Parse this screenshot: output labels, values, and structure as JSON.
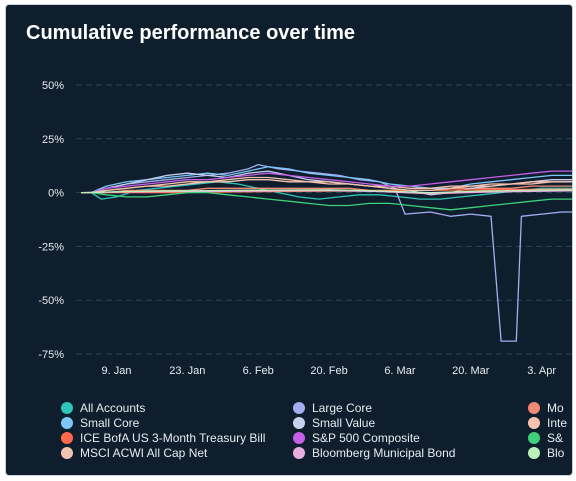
{
  "chart_data": {
    "type": "line",
    "title": "Cumulative performance over time",
    "ylim": [
      -75,
      50
    ],
    "y_ticks": [
      "50%",
      "25%",
      "0%",
      "-25%",
      "-50%",
      "-75%"
    ],
    "y_tick_values": [
      50,
      25,
      0,
      -25,
      -50,
      -75
    ],
    "x_ticks": [
      "9. Jan",
      "23. Jan",
      "6. Feb",
      "20. Feb",
      "6. Mar",
      "20. Mar",
      "3. Apr"
    ],
    "x_tick_days": [
      8,
      22,
      36,
      50,
      64,
      78,
      92
    ],
    "x_range_days": [
      0,
      98
    ],
    "grid": true,
    "legend_position": "bottom",
    "series": [
      {
        "name": "All Accounts",
        "color": "#2ec4b6",
        "values": [
          [
            1,
            0
          ],
          [
            3,
            0
          ],
          [
            5,
            -3
          ],
          [
            8,
            -2
          ],
          [
            12,
            1
          ],
          [
            16,
            2
          ],
          [
            20,
            3
          ],
          [
            24,
            4
          ],
          [
            28,
            5
          ],
          [
            32,
            4
          ],
          [
            36,
            2
          ],
          [
            40,
            0
          ],
          [
            44,
            -2
          ],
          [
            48,
            -3
          ],
          [
            52,
            -2
          ],
          [
            56,
            -1
          ],
          [
            60,
            -1
          ],
          [
            64,
            -2
          ],
          [
            68,
            -3
          ],
          [
            72,
            -3
          ],
          [
            76,
            -2
          ],
          [
            80,
            -1
          ],
          [
            84,
            0
          ],
          [
            88,
            1
          ],
          [
            92,
            2
          ],
          [
            96,
            2
          ],
          [
            98,
            2
          ]
        ]
      },
      {
        "name": "Large Core",
        "color": "#a3aef0",
        "values": [
          [
            1,
            0
          ],
          [
            3,
            0
          ],
          [
            6,
            2
          ],
          [
            10,
            4
          ],
          [
            14,
            5
          ],
          [
            18,
            6
          ],
          [
            22,
            7
          ],
          [
            26,
            8
          ],
          [
            30,
            9
          ],
          [
            34,
            11
          ],
          [
            36,
            13
          ],
          [
            40,
            11
          ],
          [
            44,
            10
          ],
          [
            48,
            9
          ],
          [
            52,
            8
          ],
          [
            56,
            6
          ],
          [
            60,
            5
          ],
          [
            63,
            2
          ],
          [
            65,
            -10
          ],
          [
            70,
            -9
          ],
          [
            74,
            -11
          ],
          [
            78,
            -10
          ],
          [
            82,
            -11
          ],
          [
            84,
            -69
          ],
          [
            87,
            -69
          ],
          [
            88,
            -11
          ],
          [
            92,
            -10
          ],
          [
            96,
            -9
          ],
          [
            98,
            -9
          ]
        ]
      },
      {
        "name": "Mo",
        "color": "#f08a72",
        "values": [
          [
            1,
            0
          ],
          [
            3,
            0
          ],
          [
            6,
            0
          ],
          [
            10,
            1
          ],
          [
            14,
            1
          ],
          [
            18,
            1
          ],
          [
            22,
            1
          ],
          [
            26,
            2
          ],
          [
            30,
            2
          ],
          [
            34,
            2
          ],
          [
            38,
            2
          ],
          [
            42,
            2
          ],
          [
            46,
            2
          ],
          [
            50,
            2
          ],
          [
            54,
            2
          ],
          [
            58,
            1
          ],
          [
            62,
            1
          ],
          [
            66,
            1
          ],
          [
            70,
            1
          ],
          [
            74,
            2
          ],
          [
            78,
            2
          ],
          [
            82,
            2
          ],
          [
            86,
            2
          ],
          [
            90,
            3
          ],
          [
            94,
            3
          ],
          [
            98,
            3
          ]
        ]
      },
      {
        "name": "Small Core",
        "color": "#7dc6f7",
        "values": [
          [
            1,
            0
          ],
          [
            3,
            0
          ],
          [
            6,
            3
          ],
          [
            10,
            5
          ],
          [
            14,
            6
          ],
          [
            18,
            7
          ],
          [
            22,
            8
          ],
          [
            26,
            9
          ],
          [
            30,
            8
          ],
          [
            34,
            10
          ],
          [
            38,
            12
          ],
          [
            42,
            11
          ],
          [
            46,
            9
          ],
          [
            50,
            8
          ],
          [
            54,
            7
          ],
          [
            58,
            6
          ],
          [
            62,
            4
          ],
          [
            66,
            3
          ],
          [
            70,
            2
          ],
          [
            74,
            2
          ],
          [
            78,
            4
          ],
          [
            82,
            5
          ],
          [
            86,
            6
          ],
          [
            90,
            7
          ],
          [
            94,
            8
          ],
          [
            98,
            8
          ]
        ]
      },
      {
        "name": "Small Value",
        "color": "#c7d1ee",
        "values": [
          [
            1,
            0
          ],
          [
            3,
            0
          ],
          [
            6,
            2
          ],
          [
            10,
            4
          ],
          [
            14,
            6
          ],
          [
            18,
            8
          ],
          [
            22,
            9
          ],
          [
            26,
            8
          ],
          [
            30,
            7
          ],
          [
            34,
            9
          ],
          [
            38,
            10
          ],
          [
            42,
            8
          ],
          [
            46,
            6
          ],
          [
            50,
            5
          ],
          [
            54,
            4
          ],
          [
            58,
            3
          ],
          [
            62,
            2
          ],
          [
            66,
            1
          ],
          [
            70,
            -1
          ],
          [
            74,
            0
          ],
          [
            78,
            2
          ],
          [
            82,
            3
          ],
          [
            86,
            4
          ],
          [
            90,
            5
          ],
          [
            94,
            6
          ],
          [
            98,
            6
          ]
        ]
      },
      {
        "name": "Inte",
        "color": "#f8c2b0",
        "values": [
          [
            1,
            0
          ],
          [
            3,
            0
          ],
          [
            6,
            1
          ],
          [
            10,
            2
          ],
          [
            14,
            3
          ],
          [
            18,
            3
          ],
          [
            22,
            4
          ],
          [
            26,
            5
          ],
          [
            30,
            5
          ],
          [
            34,
            6
          ],
          [
            38,
            6
          ],
          [
            42,
            5
          ],
          [
            46,
            5
          ],
          [
            50,
            4
          ],
          [
            54,
            4
          ],
          [
            58,
            3
          ],
          [
            62,
            3
          ],
          [
            66,
            2
          ],
          [
            70,
            2
          ],
          [
            74,
            3
          ],
          [
            78,
            3
          ],
          [
            82,
            4
          ],
          [
            86,
            4
          ],
          [
            90,
            5
          ],
          [
            94,
            5
          ],
          [
            98,
            5
          ]
        ]
      },
      {
        "name": "ICE BofA US 3-Month Treasury Bill",
        "color": "#ff6b4a",
        "values": [
          [
            1,
            0
          ],
          [
            10,
            0
          ],
          [
            20,
            0
          ],
          [
            30,
            0.3
          ],
          [
            40,
            0.5
          ],
          [
            50,
            0.7
          ],
          [
            60,
            0.9
          ],
          [
            70,
            1.1
          ],
          [
            80,
            1.3
          ],
          [
            90,
            1.5
          ],
          [
            98,
            1.6
          ]
        ]
      },
      {
        "name": "S&P 500 Composite",
        "color": "#c45fe8",
        "values": [
          [
            1,
            0
          ],
          [
            3,
            0
          ],
          [
            6,
            2
          ],
          [
            10,
            3
          ],
          [
            14,
            4
          ],
          [
            18,
            5
          ],
          [
            22,
            6
          ],
          [
            26,
            6
          ],
          [
            30,
            7
          ],
          [
            34,
            8
          ],
          [
            38,
            9
          ],
          [
            42,
            8
          ],
          [
            46,
            7
          ],
          [
            50,
            6
          ],
          [
            54,
            5
          ],
          [
            58,
            4
          ],
          [
            62,
            3
          ],
          [
            66,
            3
          ],
          [
            70,
            4
          ],
          [
            74,
            5
          ],
          [
            78,
            6
          ],
          [
            82,
            7
          ],
          [
            86,
            8
          ],
          [
            90,
            9
          ],
          [
            94,
            10
          ],
          [
            98,
            10
          ]
        ]
      },
      {
        "name": "S&",
        "color": "#3ed17a",
        "values": [
          [
            1,
            0
          ],
          [
            3,
            0
          ],
          [
            6,
            -1
          ],
          [
            10,
            -2
          ],
          [
            14,
            -2
          ],
          [
            18,
            -1
          ],
          [
            22,
            0
          ],
          [
            26,
            0
          ],
          [
            30,
            -1
          ],
          [
            34,
            -2
          ],
          [
            38,
            -3
          ],
          [
            42,
            -4
          ],
          [
            46,
            -5
          ],
          [
            50,
            -6
          ],
          [
            54,
            -6
          ],
          [
            58,
            -5
          ],
          [
            62,
            -5
          ],
          [
            66,
            -6
          ],
          [
            70,
            -7
          ],
          [
            74,
            -8
          ],
          [
            78,
            -7
          ],
          [
            82,
            -6
          ],
          [
            86,
            -5
          ],
          [
            90,
            -4
          ],
          [
            94,
            -3
          ],
          [
            98,
            -3
          ]
        ]
      },
      {
        "name": "MSCI ACWI All Cap Net",
        "color": "#f3c3b2",
        "values": [
          [
            1,
            0
          ],
          [
            3,
            0
          ],
          [
            6,
            1
          ],
          [
            10,
            2
          ],
          [
            14,
            3
          ],
          [
            18,
            4
          ],
          [
            22,
            5
          ],
          [
            26,
            5
          ],
          [
            30,
            6
          ],
          [
            34,
            7
          ],
          [
            38,
            7
          ],
          [
            42,
            6
          ],
          [
            46,
            5
          ],
          [
            50,
            5
          ],
          [
            54,
            4
          ],
          [
            58,
            3
          ],
          [
            62,
            2
          ],
          [
            66,
            1
          ],
          [
            70,
            1
          ],
          [
            74,
            2
          ],
          [
            78,
            3
          ],
          [
            82,
            3
          ],
          [
            86,
            4
          ],
          [
            90,
            4
          ],
          [
            94,
            5
          ],
          [
            98,
            5
          ]
        ]
      },
      {
        "name": "Bloomberg Municipal Bond",
        "color": "#e8aee0",
        "values": [
          [
            1,
            0
          ],
          [
            10,
            0.3
          ],
          [
            20,
            0.5
          ],
          [
            30,
            0.6
          ],
          [
            40,
            0.8
          ],
          [
            50,
            0.9
          ],
          [
            60,
            0.5
          ],
          [
            70,
            -0.5
          ],
          [
            80,
            0.2
          ],
          [
            90,
            0.6
          ],
          [
            98,
            0.8
          ]
        ]
      },
      {
        "name": "Blo",
        "color": "#bdf0b8",
        "values": [
          [
            1,
            0
          ],
          [
            10,
            0.5
          ],
          [
            20,
            0.8
          ],
          [
            30,
            1
          ],
          [
            40,
            1.2
          ],
          [
            50,
            1.3
          ],
          [
            60,
            0.8
          ],
          [
            70,
            0
          ],
          [
            80,
            0.7
          ],
          [
            90,
            1.1
          ],
          [
            98,
            1.3
          ]
        ]
      }
    ]
  },
  "legend": [
    {
      "name": "All Accounts",
      "color": "#2ec4b6"
    },
    {
      "name": "Large Core",
      "color": "#a3aef0"
    },
    {
      "name": "Mo",
      "color": "#f08a72"
    },
    {
      "name": "Small Core",
      "color": "#7dc6f7"
    },
    {
      "name": "Small Value",
      "color": "#c7d1ee"
    },
    {
      "name": "Inte",
      "color": "#f8c2b0"
    },
    {
      "name": "ICE BofA US 3-Month Treasury Bill",
      "color": "#ff6b4a"
    },
    {
      "name": "S&P 500 Composite",
      "color": "#c45fe8"
    },
    {
      "name": "S&",
      "color": "#3ed17a"
    },
    {
      "name": "MSCI ACWI All Cap Net",
      "color": "#f3c3b2"
    },
    {
      "name": "Bloomberg Municipal Bond",
      "color": "#e8aee0"
    },
    {
      "name": "Blo",
      "color": "#bdf0b8"
    }
  ],
  "colors": {
    "background": "#0f1e2d",
    "grid": "#2f4457",
    "axis_text": "#e6ebf0",
    "title": "#ffffff"
  }
}
